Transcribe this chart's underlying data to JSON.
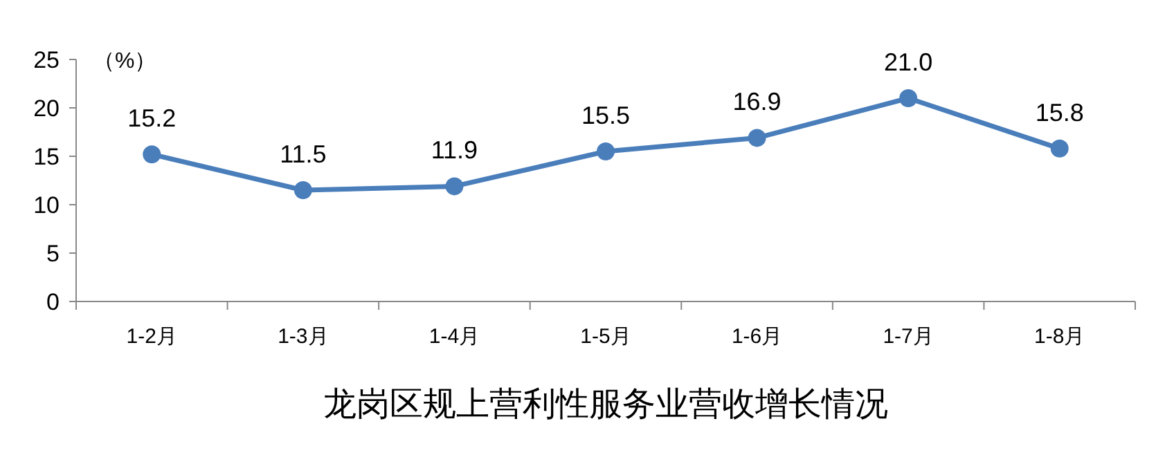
{
  "chart_data": {
    "type": "line",
    "title": "龙岗区规上营利性服务业营收增长情况",
    "ylabel": "（%）",
    "categories": [
      "1-2月",
      "1-3月",
      "1-4月",
      "1-5月",
      "1-6月",
      "1-7月",
      "1-8月"
    ],
    "series": [
      {
        "color": "#4a7ebb",
        "values": [
          15.2,
          11.5,
          11.9,
          15.5,
          16.9,
          21.0,
          15.8
        ],
        "value_labels": [
          "15.2",
          "11.5",
          "11.9",
          "15.5",
          "16.9",
          "21.0",
          "15.8"
        ]
      }
    ],
    "ylim": [
      0,
      25
    ],
    "yticks": [
      0,
      5,
      10,
      15,
      20,
      25
    ],
    "marker": "circle",
    "line_style": "solid"
  }
}
